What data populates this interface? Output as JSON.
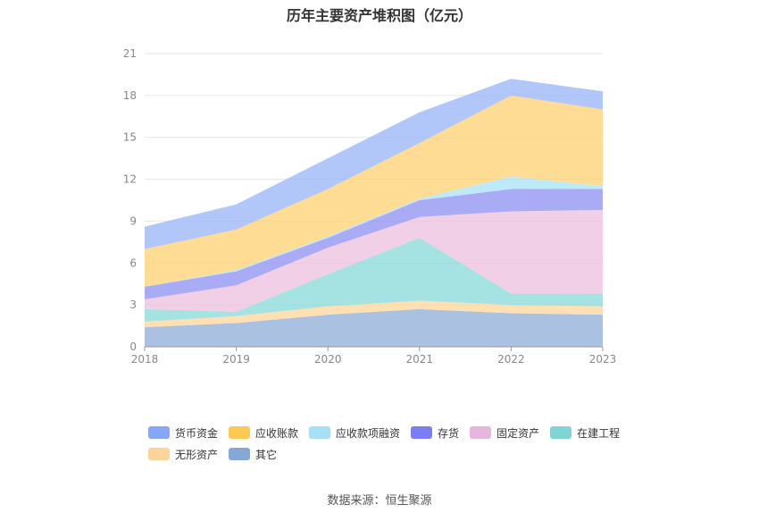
{
  "chart_data": {
    "type": "area",
    "stacked": true,
    "title": "历年主要资产堆积图（亿元）",
    "x": [
      "2018",
      "2019",
      "2020",
      "2021",
      "2022",
      "2023"
    ],
    "ylim": [
      0,
      21
    ],
    "yticks": [
      0,
      3,
      6,
      9,
      12,
      15,
      18,
      21
    ],
    "grid": true,
    "legend_position": "bottom",
    "series": [
      {
        "name": "其它",
        "color": "#8eacd8",
        "values": [
          1.4,
          1.7,
          2.3,
          2.7,
          2.4,
          2.3
        ]
      },
      {
        "name": "无形资产",
        "color": "#fdd59a",
        "values": [
          0.4,
          0.5,
          0.6,
          0.6,
          0.6,
          0.6
        ]
      },
      {
        "name": "在建工程",
        "color": "#86d9d8",
        "values": [
          0.9,
          0.3,
          2.3,
          4.5,
          0.8,
          0.9
        ]
      },
      {
        "name": "固定资产",
        "color": "#ecbfdf",
        "values": [
          0.7,
          1.9,
          1.9,
          1.5,
          5.9,
          6.0
        ]
      },
      {
        "name": "存货",
        "color": "#8d8ff2",
        "values": [
          0.9,
          1.0,
          0.7,
          1.2,
          1.6,
          1.5
        ]
      },
      {
        "name": "应收款项融资",
        "color": "#a8e2f6",
        "values": [
          0.0,
          0.1,
          0.1,
          0.1,
          0.9,
          0.2
        ]
      },
      {
        "name": "应收账款",
        "color": "#fed070",
        "values": [
          2.7,
          2.9,
          3.4,
          4.0,
          5.8,
          5.5
        ]
      },
      {
        "name": "货币资金",
        "color": "#98b4f7",
        "values": [
          1.6,
          1.8,
          2.2,
          2.2,
          1.2,
          1.3
        ]
      }
    ]
  },
  "legend": {
    "rows": [
      [
        {
          "label": "货币资金",
          "color": "#86a6f7"
        },
        {
          "label": "应收账款",
          "color": "#fdc950"
        },
        {
          "label": "应收款项融资",
          "color": "#a6e0f7"
        },
        {
          "label": "存货",
          "color": "#7b7ef0"
        },
        {
          "label": "固定资产",
          "color": "#e6b6dc"
        },
        {
          "label": "在建工程",
          "color": "#7fd4d4"
        }
      ],
      [
        {
          "label": "无形资产",
          "color": "#fdd49a"
        },
        {
          "label": "其它",
          "color": "#86a8d6"
        }
      ]
    ]
  },
  "source": "数据来源：恒生聚源"
}
